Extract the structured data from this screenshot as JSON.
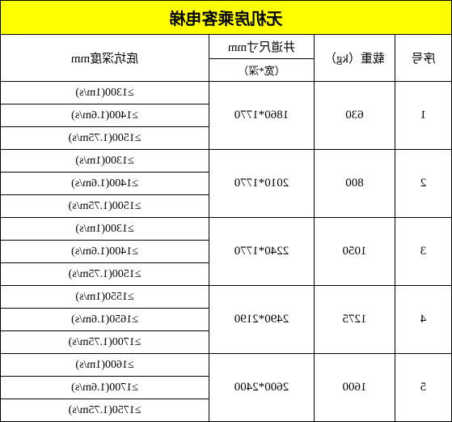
{
  "title": "无机房乘客电梯",
  "headers": {
    "seq": "序号",
    "load": "载重（kg）",
    "dim_main": "井道尺寸mm",
    "dim_sub": "（宽*深）",
    "pit": "底坑深度mm"
  },
  "rows": [
    {
      "seq": "1",
      "load": "630",
      "dim": "1860*1770",
      "pits": [
        "≥1300(1m/s)",
        "≥1400(1.6m/s)",
        "≥1500(1.75m/s)"
      ]
    },
    {
      "seq": "2",
      "load": "800",
      "dim": "2010*1770",
      "pits": [
        "≥1300(1m/s)",
        "≥1400(1.6m/s)",
        "≥1500(1.75m/s)"
      ]
    },
    {
      "seq": "3",
      "load": "1050",
      "dim": "2240*1770",
      "pits": [
        "≥1300(1m/s)",
        "≥1400(1.6m/s)",
        "≥1500(1.75m/s)"
      ]
    },
    {
      "seq": "4",
      "load": "1275",
      "dim": "2490*2190",
      "pits": [
        "≥1550(1m/s)",
        "≥1650(1.6m/s)",
        "≥1700(1.75m/s)"
      ]
    },
    {
      "seq": "5",
      "load": "1600",
      "dim": "2600*2400",
      "pits": [
        "≥1600(1m/s)",
        "≥1700(1.6m/s)",
        "≥1750(1.75m/s)"
      ]
    }
  ],
  "colors": {
    "title_bg": "#ffff00",
    "border": "#000000",
    "bg": "#ffffff"
  }
}
